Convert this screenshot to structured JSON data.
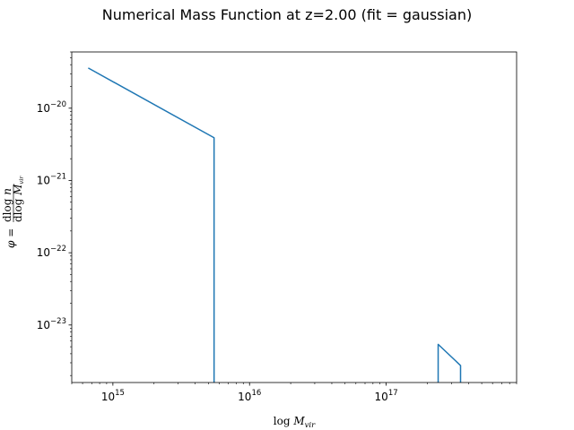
{
  "chart_data": {
    "type": "line",
    "title": "Numerical Mass Function at z=2.00 (fit = gaussian)",
    "xlabel": "log M_vir",
    "ylabel": "φ = dlog n / dlog M_vir",
    "xscale": "log",
    "yscale": "log",
    "xlim": [
      500000000000000,
      900000000000000000
    ],
    "ylim": [
      1.6e-24,
      6e-20
    ],
    "x_ticks": [
      {
        "base": "10",
        "exp": "15",
        "value": 1000000000000000.0
      },
      {
        "base": "10",
        "exp": "16",
        "value": 1e+16
      },
      {
        "base": "10",
        "exp": "17",
        "value": 1e+17
      }
    ],
    "y_ticks": [
      {
        "base": "10",
        "exp": "−20",
        "value": 1e-20
      },
      {
        "base": "10",
        "exp": "−21",
        "value": 1e-21
      },
      {
        "base": "10",
        "exp": "−22",
        "value": 1e-22
      },
      {
        "base": "10",
        "exp": "−23",
        "value": 1e-23
      }
    ],
    "grid": false,
    "color": "#1f77b4",
    "series": [
      {
        "x": [
          660000000000000,
          5500000000000000,
          5500000000000000,
          5500000000000000
        ],
        "y": [
          3.6e-20,
          3.9e-21,
          1e-22,
          1.6e-24
        ]
      },
      {
        "x": [
          240000000000000000,
          240000000000000000,
          350000000000000000,
          350000000000000000
        ],
        "y": [
          1.6e-24,
          5.4e-24,
          2.75e-24,
          1.6e-24
        ]
      }
    ]
  }
}
